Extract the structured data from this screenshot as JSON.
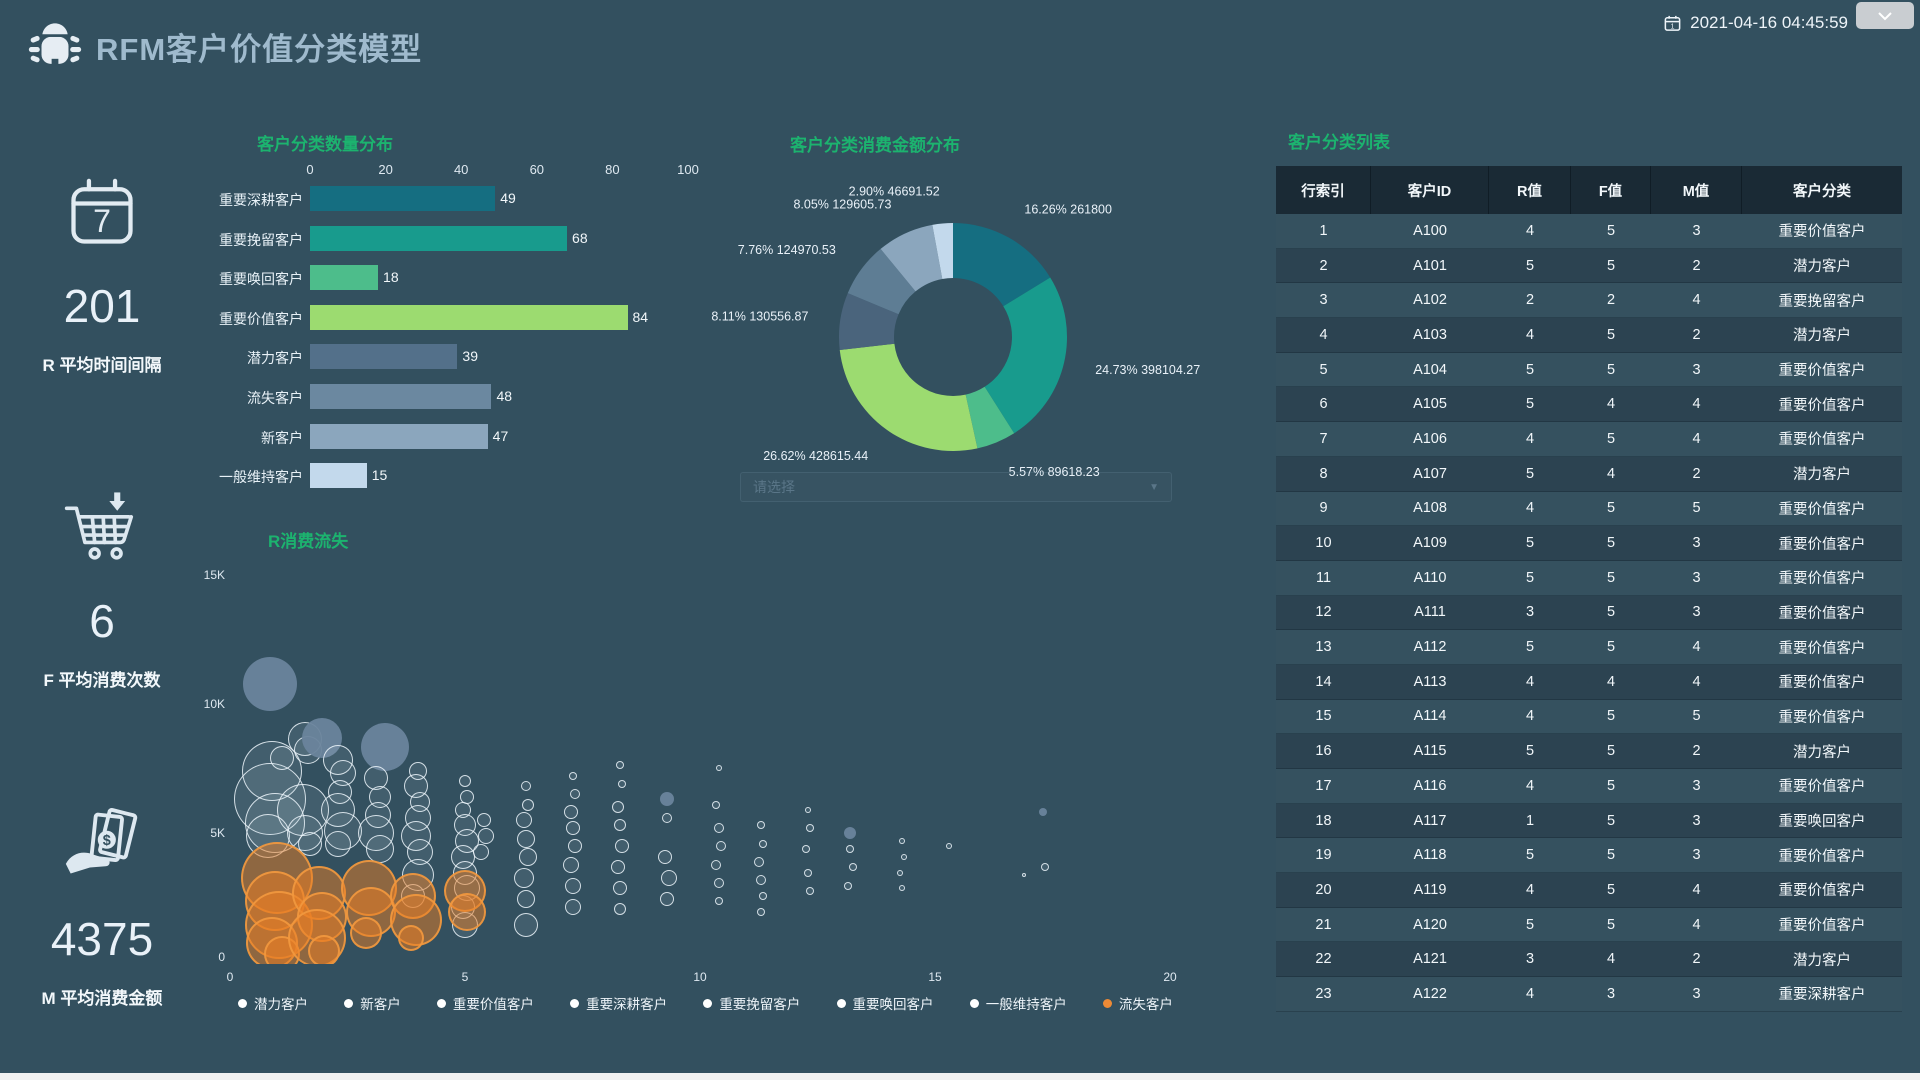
{
  "header": {
    "title": "RFM客户价值分类模型",
    "datetime": "2021-04-16 04:45:59"
  },
  "kpis": [
    {
      "icon": "calendar-7-icon",
      "value": "201",
      "label": "R 平均时间间隔"
    },
    {
      "icon": "cart-arrow-down-icon",
      "value": "6",
      "label": "F 平均消费次数"
    },
    {
      "icon": "money-hand-icon",
      "value": "4375",
      "label": "M 平均消费金额"
    }
  ],
  "chart_data": [
    {
      "type": "bar",
      "title": "客户分类数量分布",
      "orientation": "horizontal",
      "categories": [
        "重要深耕客户",
        "重要挽留客户",
        "重要唤回客户",
        "重要价值客户",
        "潜力客户",
        "流失客户",
        "新客户",
        "一般维持客户"
      ],
      "values": [
        49,
        68,
        18,
        84,
        39,
        48,
        47,
        15
      ],
      "xlim": [
        0,
        100
      ],
      "xticks": [
        "0",
        "20",
        "40",
        "60",
        "80",
        "100"
      ],
      "bar_colors": [
        "#156e81",
        "#189b8d",
        "#4dbd8b",
        "#9cdb70",
        "#53708a",
        "#6b88a0",
        "#8ba6bd",
        "#c3d9ec"
      ]
    },
    {
      "type": "pie",
      "title": "客户分类消费金额分布",
      "donut": true,
      "slices": [
        {
          "name": "重要深耕客户",
          "percent": "16.26",
          "amount": "261800",
          "color": "#156e81"
        },
        {
          "name": "重要挽留客户",
          "percent": "24.73",
          "amount": "398104.27",
          "color": "#189b8d"
        },
        {
          "name": "重要唤回客户",
          "percent": "5.57",
          "amount": "89618.23",
          "color": "#4dbd8b"
        },
        {
          "name": "重要价值客户",
          "percent": "26.62",
          "amount": "428615.44",
          "color": "#9cdb70"
        },
        {
          "name": "潜力客户",
          "percent": "8.11",
          "amount": "130556.87",
          "color": "#4a647c"
        },
        {
          "name": "流失客户",
          "percent": "7.76",
          "amount": "124970.53",
          "color": "#5e7d94"
        },
        {
          "name": "新客户",
          "percent": "8.05",
          "amount": "129605.73",
          "color": "#8ba6bd"
        },
        {
          "name": "一般维持客户",
          "percent": "2.90",
          "amount": "46691.52",
          "color": "#c3d9ec"
        }
      ],
      "select_placeholder": "请选择",
      "select_caret": "▼"
    },
    {
      "type": "scatter",
      "title": "R消费流失",
      "xlim": [
        0,
        20
      ],
      "ylim": [
        0,
        15000
      ],
      "xticks": [
        "0",
        "5",
        "10",
        "15",
        "20"
      ],
      "yticks": [
        "0",
        "5K",
        "10K",
        "15K"
      ],
      "legend": [
        {
          "label": "潜力客户",
          "color": "#ffffff"
        },
        {
          "label": "新客户",
          "color": "#ffffff"
        },
        {
          "label": "重要价值客户",
          "color": "#ffffff"
        },
        {
          "label": "重要深耕客户",
          "color": "#ffffff"
        },
        {
          "label": "重要挽留客户",
          "color": "#ffffff"
        },
        {
          "label": "重要唤回客户",
          "color": "#ffffff"
        },
        {
          "label": "一般维持客户",
          "color": "#ffffff"
        },
        {
          "label": "流失客户",
          "color": "#ed8a36"
        }
      ],
      "bubbles": [
        [
          0.85,
          10.7,
          27,
          "s"
        ],
        [
          0.9,
          7.4,
          30,
          "g"
        ],
        [
          0.85,
          6.3,
          36,
          "g"
        ],
        [
          0.95,
          5.4,
          30,
          "g"
        ],
        [
          0.8,
          4.9,
          22,
          "g"
        ],
        [
          1.1,
          7.9,
          12,
          "g"
        ],
        [
          1.6,
          8.6,
          17,
          "g"
        ],
        [
          1.65,
          8.2,
          14,
          "g"
        ],
        [
          1.55,
          5.9,
          26,
          "g"
        ],
        [
          1.6,
          5.0,
          18,
          "g"
        ],
        [
          1.7,
          4.6,
          12,
          "g"
        ],
        [
          1.95,
          8.65,
          20,
          "s"
        ],
        [
          2.3,
          7.8,
          15,
          "g"
        ],
        [
          2.4,
          7.3,
          13,
          "g"
        ],
        [
          2.35,
          6.6,
          12,
          "g"
        ],
        [
          2.3,
          5.9,
          17,
          "g"
        ],
        [
          2.4,
          5.1,
          19,
          "g"
        ],
        [
          2.3,
          4.6,
          13,
          "g"
        ],
        [
          3.3,
          8.3,
          24,
          "s"
        ],
        [
          3.1,
          7.1,
          12,
          "g"
        ],
        [
          3.2,
          6.4,
          11,
          "g"
        ],
        [
          3.15,
          5.7,
          13,
          "g"
        ],
        [
          3.1,
          5.0,
          18,
          "g"
        ],
        [
          3.2,
          4.4,
          14,
          "g"
        ],
        [
          4.0,
          7.4,
          9,
          "g"
        ],
        [
          3.95,
          6.8,
          12,
          "g"
        ],
        [
          4.05,
          6.2,
          10,
          "g"
        ],
        [
          4.0,
          5.6,
          13,
          "g"
        ],
        [
          3.95,
          4.9,
          15,
          "g"
        ],
        [
          4.05,
          4.3,
          13,
          "g"
        ],
        [
          4.0,
          3.4,
          16,
          "g"
        ],
        [
          3.9,
          2.6,
          12,
          "g"
        ],
        [
          5.0,
          7.0,
          6,
          "g"
        ],
        [
          5.05,
          6.4,
          7,
          "g"
        ],
        [
          4.95,
          5.9,
          8,
          "g"
        ],
        [
          5.0,
          5.3,
          11,
          "g"
        ],
        [
          5.05,
          4.7,
          12,
          "g"
        ],
        [
          4.95,
          4.1,
          12,
          "g"
        ],
        [
          5.0,
          3.5,
          12,
          "g"
        ],
        [
          5.05,
          2.9,
          13,
          "g"
        ],
        [
          4.95,
          2.2,
          12,
          "g"
        ],
        [
          5.0,
          1.5,
          13,
          "g"
        ],
        [
          5.4,
          5.5,
          7,
          "g"
        ],
        [
          5.45,
          4.9,
          8,
          "g"
        ],
        [
          5.35,
          4.3,
          8,
          "g"
        ],
        [
          6.3,
          6.8,
          5,
          "g"
        ],
        [
          6.35,
          6.1,
          6,
          "g"
        ],
        [
          6.25,
          5.5,
          8,
          "g"
        ],
        [
          6.3,
          4.8,
          9,
          "g"
        ],
        [
          6.35,
          4.1,
          9,
          "g"
        ],
        [
          6.25,
          3.3,
          10,
          "g"
        ],
        [
          6.3,
          2.5,
          9,
          "g"
        ],
        [
          6.3,
          1.5,
          12,
          "g"
        ],
        [
          7.3,
          7.2,
          4,
          "g"
        ],
        [
          7.35,
          6.5,
          5,
          "g"
        ],
        [
          7.25,
          5.8,
          7,
          "g"
        ],
        [
          7.3,
          5.2,
          7,
          "g"
        ],
        [
          7.35,
          4.5,
          7,
          "g"
        ],
        [
          7.25,
          3.8,
          8,
          "g"
        ],
        [
          7.3,
          3.0,
          8,
          "g"
        ],
        [
          7.3,
          2.2,
          8,
          "g"
        ],
        [
          8.3,
          7.6,
          4,
          "g"
        ],
        [
          8.35,
          6.9,
          4,
          "g"
        ],
        [
          8.25,
          6.0,
          6,
          "g"
        ],
        [
          8.3,
          5.3,
          6,
          "g"
        ],
        [
          8.35,
          4.5,
          7,
          "g"
        ],
        [
          8.25,
          3.7,
          7,
          "g"
        ],
        [
          8.3,
          2.9,
          7,
          "g"
        ],
        [
          8.3,
          2.1,
          6,
          "g"
        ],
        [
          9.3,
          6.3,
          7,
          "s"
        ],
        [
          9.3,
          5.6,
          5,
          "g"
        ],
        [
          9.25,
          4.1,
          7,
          "g"
        ],
        [
          9.35,
          3.3,
          8,
          "g"
        ],
        [
          9.3,
          2.5,
          7,
          "g"
        ],
        [
          10.4,
          7.5,
          3,
          "g"
        ],
        [
          10.35,
          6.1,
          4,
          "g"
        ],
        [
          10.4,
          5.2,
          5,
          "g"
        ],
        [
          10.45,
          4.5,
          5,
          "g"
        ],
        [
          10.35,
          3.8,
          5,
          "g"
        ],
        [
          10.4,
          3.1,
          5,
          "g"
        ],
        [
          10.4,
          2.4,
          4,
          "g"
        ],
        [
          11.3,
          5.3,
          4,
          "g"
        ],
        [
          11.35,
          4.6,
          4,
          "g"
        ],
        [
          11.25,
          3.9,
          5,
          "g"
        ],
        [
          11.3,
          3.2,
          5,
          "g"
        ],
        [
          11.35,
          2.6,
          4,
          "g"
        ],
        [
          11.3,
          2.0,
          4,
          "g"
        ],
        [
          12.3,
          5.9,
          3,
          "g"
        ],
        [
          12.35,
          5.2,
          4,
          "g"
        ],
        [
          12.25,
          4.4,
          4,
          "g"
        ],
        [
          12.3,
          3.5,
          4,
          "g"
        ],
        [
          12.35,
          2.8,
          4,
          "g"
        ],
        [
          13.2,
          5.0,
          6,
          "s"
        ],
        [
          13.2,
          4.4,
          4,
          "g"
        ],
        [
          13.25,
          3.7,
          4,
          "g"
        ],
        [
          13.15,
          3.0,
          4,
          "g"
        ],
        [
          14.3,
          4.7,
          3,
          "g"
        ],
        [
          14.35,
          4.1,
          3,
          "g"
        ],
        [
          14.25,
          3.5,
          3,
          "g"
        ],
        [
          14.3,
          2.9,
          3,
          "g"
        ],
        [
          15.3,
          4.5,
          3,
          "g"
        ],
        [
          16.9,
          3.4,
          2,
          "g"
        ],
        [
          17.3,
          5.8,
          4,
          "s"
        ],
        [
          17.35,
          3.7,
          4,
          "g"
        ],
        [
          1.0,
          3.3,
          36,
          "o"
        ],
        [
          0.95,
          2.4,
          30,
          "o"
        ],
        [
          1.05,
          1.5,
          34,
          "o"
        ],
        [
          0.9,
          0.8,
          26,
          "o"
        ],
        [
          1.1,
          0.4,
          18,
          "o"
        ],
        [
          1.9,
          2.7,
          27,
          "o"
        ],
        [
          1.95,
          1.8,
          25,
          "o"
        ],
        [
          1.85,
          1.0,
          29,
          "o"
        ],
        [
          2.0,
          0.5,
          16,
          "o"
        ],
        [
          2.95,
          2.9,
          28,
          "o"
        ],
        [
          3.0,
          2.0,
          25,
          "o"
        ],
        [
          2.9,
          1.2,
          16,
          "o"
        ],
        [
          3.9,
          2.6,
          23,
          "o"
        ],
        [
          3.95,
          1.7,
          26,
          "o"
        ],
        [
          3.85,
          1.0,
          13,
          "o"
        ],
        [
          5.0,
          2.8,
          21,
          "o"
        ],
        [
          5.05,
          2.0,
          19,
          "o"
        ]
      ]
    }
  ],
  "table": {
    "title": "客户分类列表",
    "columns": [
      "行索引",
      "客户ID",
      "R值",
      "F值",
      "M值",
      "客户分类"
    ],
    "rows": [
      [
        "1",
        "A100",
        "4",
        "5",
        "3",
        "重要价值客户"
      ],
      [
        "2",
        "A101",
        "5",
        "5",
        "2",
        "潜力客户"
      ],
      [
        "3",
        "A102",
        "2",
        "2",
        "4",
        "重要挽留客户"
      ],
      [
        "4",
        "A103",
        "4",
        "5",
        "2",
        "潜力客户"
      ],
      [
        "5",
        "A104",
        "5",
        "5",
        "3",
        "重要价值客户"
      ],
      [
        "6",
        "A105",
        "5",
        "4",
        "4",
        "重要价值客户"
      ],
      [
        "7",
        "A106",
        "4",
        "5",
        "4",
        "重要价值客户"
      ],
      [
        "8",
        "A107",
        "5",
        "4",
        "2",
        "潜力客户"
      ],
      [
        "9",
        "A108",
        "4",
        "5",
        "5",
        "重要价值客户"
      ],
      [
        "10",
        "A109",
        "5",
        "5",
        "3",
        "重要价值客户"
      ],
      [
        "11",
        "A110",
        "5",
        "5",
        "3",
        "重要价值客户"
      ],
      [
        "12",
        "A111",
        "3",
        "5",
        "3",
        "重要价值客户"
      ],
      [
        "13",
        "A112",
        "5",
        "5",
        "4",
        "重要价值客户"
      ],
      [
        "14",
        "A113",
        "4",
        "4",
        "4",
        "重要价值客户"
      ],
      [
        "15",
        "A114",
        "4",
        "5",
        "5",
        "重要价值客户"
      ],
      [
        "16",
        "A115",
        "5",
        "5",
        "2",
        "潜力客户"
      ],
      [
        "17",
        "A116",
        "4",
        "5",
        "3",
        "重要价值客户"
      ],
      [
        "18",
        "A117",
        "1",
        "5",
        "3",
        "重要唤回客户"
      ],
      [
        "19",
        "A118",
        "5",
        "5",
        "3",
        "重要价值客户"
      ],
      [
        "20",
        "A119",
        "4",
        "5",
        "4",
        "重要价值客户"
      ],
      [
        "21",
        "A120",
        "5",
        "5",
        "4",
        "重要价值客户"
      ],
      [
        "22",
        "A121",
        "3",
        "4",
        "2",
        "潜力客户"
      ],
      [
        "23",
        "A122",
        "4",
        "3",
        "3",
        "重要深耕客户"
      ]
    ]
  },
  "colors": {
    "background": "#33505f",
    "panel_title_green": "#1cb36f",
    "main_title": "#9fbacd",
    "table_header_bg": "#1a2a35",
    "row_odd": "#35515f",
    "row_even": "#2c4351",
    "loss_orange": "#ed8a36"
  }
}
